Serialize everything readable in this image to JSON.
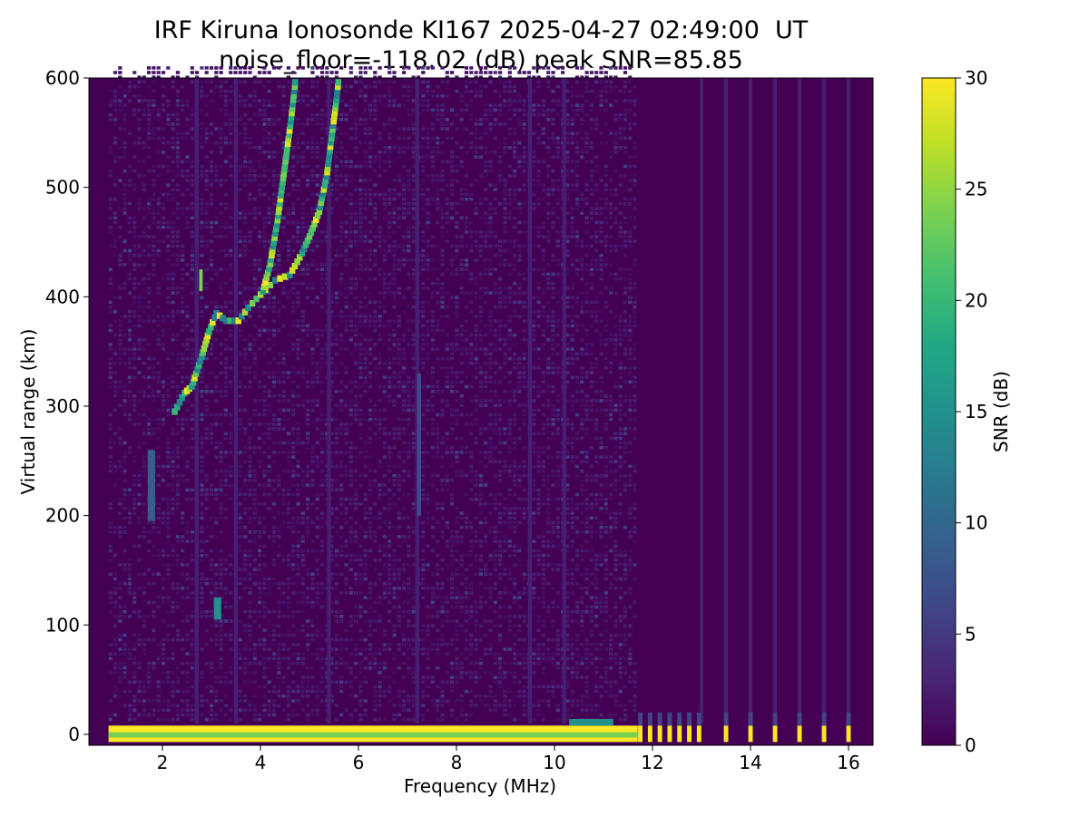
{
  "chart_data": {
    "type": "heatmap",
    "title": "IRF Kiruna Ionosonde KI167 2025-04-27 02:49:00  UT",
    "subtitle": "noise_floor=-118.02 (dB) peak SNR=85.85",
    "xlabel": "Frequency (MHz)",
    "ylabel": "Virtual range (km)",
    "colorbar_label": "SNR (dB)",
    "colormap": "viridis",
    "xlim": [
      0.5,
      16.5
    ],
    "ylim": [
      -10,
      600
    ],
    "clim": [
      0,
      30
    ],
    "xticks": [
      2,
      4,
      6,
      8,
      10,
      12,
      14,
      16
    ],
    "yticks": [
      0,
      100,
      200,
      300,
      400,
      500,
      600
    ],
    "cticks": [
      0,
      5,
      10,
      15,
      20,
      25,
      30
    ],
    "swept_band_mhz": [
      0.9,
      11.7
    ],
    "discrete_channels_mhz": [
      11.75,
      11.95,
      12.15,
      12.35,
      12.55,
      12.75,
      12.95,
      13.5,
      14.0,
      14.5,
      15.0,
      15.5,
      16.0
    ],
    "ground_echo": {
      "range_km": 0,
      "snr_db": 30
    },
    "traces": [
      {
        "name": "",
        "points": [
          [
            2.25,
            295
          ],
          [
            2.45,
            312
          ],
          [
            2.6,
            318
          ],
          [
            2.8,
            345
          ],
          [
            2.95,
            368
          ],
          [
            3.1,
            385
          ],
          [
            3.3,
            378
          ],
          [
            3.55,
            378
          ],
          [
            3.75,
            390
          ],
          [
            4.0,
            402
          ],
          [
            4.3,
            415
          ],
          [
            4.6,
            420
          ],
          [
            4.85,
            440
          ],
          [
            5.0,
            455
          ],
          [
            5.2,
            478
          ],
          [
            5.35,
            510
          ],
          [
            5.45,
            545
          ],
          [
            5.55,
            580
          ],
          [
            5.6,
            600
          ]
        ]
      },
      {
        "name": "",
        "points": [
          [
            4.05,
            405
          ],
          [
            4.2,
            430
          ],
          [
            4.35,
            470
          ],
          [
            4.5,
            520
          ],
          [
            4.62,
            560
          ],
          [
            4.72,
            600
          ]
        ]
      }
    ],
    "patches": [
      {
        "x": [
          2.75,
          2.82
        ],
        "y": [
          405,
          425
        ],
        "snr": 24
      },
      {
        "x": [
          3.05,
          3.2
        ],
        "y": [
          105,
          125
        ],
        "snr": 15
      },
      {
        "x": [
          1.7,
          1.85
        ],
        "y": [
          195,
          260
        ],
        "snr": 9
      },
      {
        "x": [
          7.2,
          7.28
        ],
        "y": [
          200,
          330
        ],
        "snr": 7
      }
    ]
  }
}
